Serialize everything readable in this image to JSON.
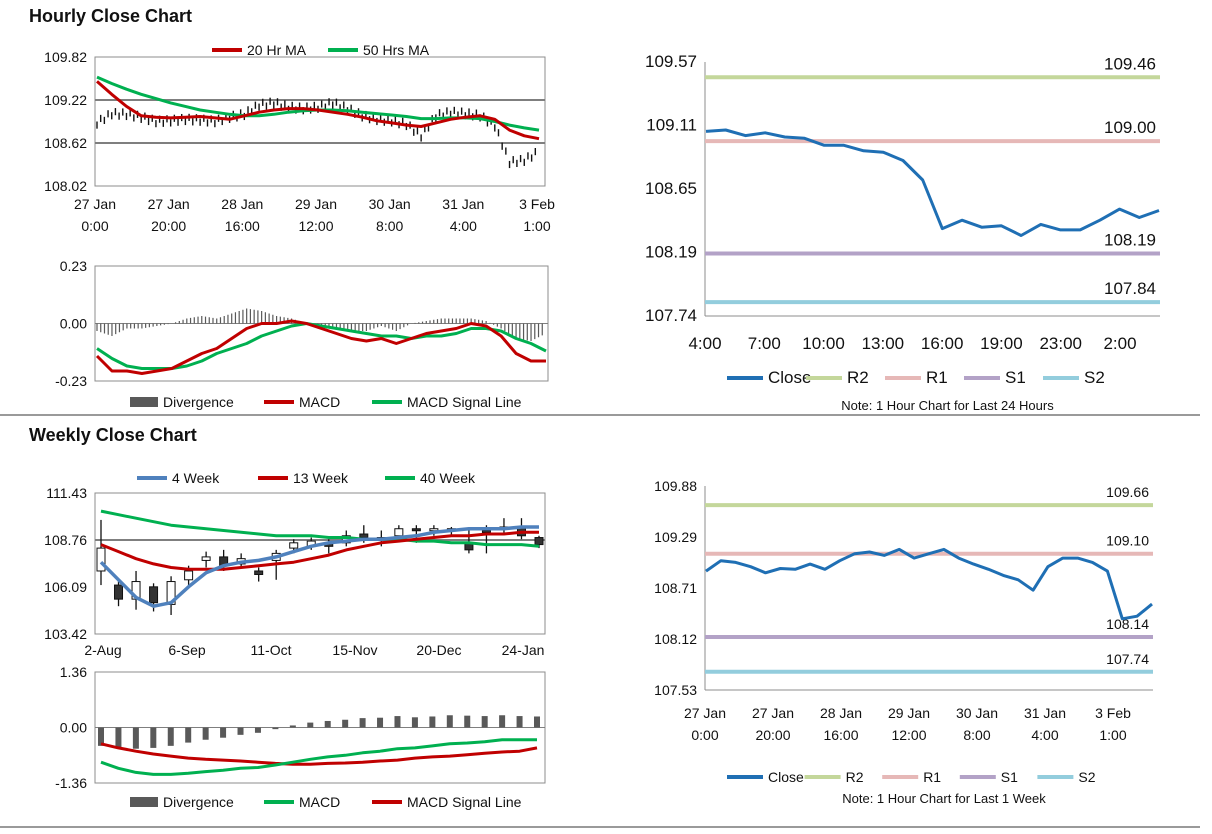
{
  "sections": {
    "hourly_title": "Hourly Close Chart",
    "weekly_title": "Weekly Close Chart"
  },
  "colors": {
    "ma_short": "#c00000",
    "ma_long": "#00b050",
    "ma_4wk": "#4f81bd",
    "close": "#1f6fb4",
    "r2": "#c4d79b",
    "r1": "#e6b8b7",
    "s1": "#b3a2c7",
    "s2": "#93cddd",
    "divergence": "#595959",
    "reference": "#7f7f7f"
  },
  "chart_data": [
    {
      "id": "hourly-price",
      "type": "candlestick",
      "title": "",
      "yticks": [
        "109.82",
        "109.22",
        "108.62",
        "108.02"
      ],
      "ylim": [
        108.02,
        109.82
      ],
      "xlabels": [
        [
          "27 Jan",
          "0:00"
        ],
        [
          "27 Jan",
          "20:00"
        ],
        [
          "28 Jan",
          "16:00"
        ],
        [
          "29 Jan",
          "12:00"
        ],
        [
          "30 Jan",
          "8:00"
        ],
        [
          "31 Jan",
          "4:00"
        ],
        [
          "3 Feb",
          "1:00"
        ]
      ],
      "reference_lines": [
        109.22,
        108.62
      ],
      "legend": [
        "20 Hr MA",
        "50 Hrs MA"
      ],
      "x": [
        0,
        2,
        4,
        6,
        8,
        10,
        12,
        14,
        16,
        18,
        20,
        22,
        24,
        26,
        28,
        30,
        32,
        34,
        36,
        38,
        40,
        42,
        44,
        46,
        48,
        50,
        52,
        54,
        56,
        58,
        60
      ],
      "close": [
        108.9,
        109.03,
        109.02,
        108.98,
        108.92,
        108.93,
        108.95,
        108.94,
        108.92,
        108.98,
        109.02,
        109.15,
        109.18,
        109.12,
        109.1,
        109.12,
        109.18,
        109.1,
        109.0,
        108.95,
        108.93,
        108.88,
        108.72,
        109.0,
        109.05,
        109.03,
        109.0,
        108.86,
        108.35,
        108.38,
        108.5
      ],
      "ma_20hr": [
        109.48,
        109.3,
        109.13,
        109.0,
        108.98,
        108.97,
        108.98,
        108.99,
        108.97,
        108.95,
        109.0,
        109.05,
        109.08,
        109.1,
        109.1,
        109.08,
        109.05,
        109.02,
        108.98,
        108.93,
        108.9,
        108.87,
        108.85,
        108.9,
        108.95,
        108.98,
        109.0,
        108.95,
        108.8,
        108.72,
        108.68
      ],
      "ma_50hr": [
        109.54,
        109.45,
        109.37,
        109.3,
        109.24,
        109.18,
        109.13,
        109.08,
        109.05,
        109.02,
        109.0,
        109.0,
        109.02,
        109.05,
        109.07,
        109.08,
        109.08,
        109.07,
        109.05,
        109.03,
        109.01,
        108.99,
        108.96,
        108.96,
        108.97,
        108.97,
        108.96,
        108.92,
        108.87,
        108.83,
        108.8
      ]
    },
    {
      "id": "hourly-macd",
      "type": "macd",
      "yticks": [
        "0.23",
        "0.00",
        "-0.23"
      ],
      "ylim": [
        -0.23,
        0.23
      ],
      "legend": [
        "Divergence",
        "MACD",
        "MACD Signal Line"
      ],
      "x": [
        0,
        2,
        4,
        6,
        8,
        10,
        12,
        14,
        16,
        18,
        20,
        22,
        24,
        26,
        28,
        30,
        32,
        34,
        36,
        38,
        40,
        42,
        44,
        46,
        48,
        50,
        52,
        54,
        56,
        58,
        60
      ],
      "macd": [
        -0.13,
        -0.19,
        -0.19,
        -0.2,
        -0.19,
        -0.18,
        -0.15,
        -0.12,
        -0.1,
        -0.06,
        -0.02,
        0.0,
        0.0,
        0.01,
        0.0,
        -0.02,
        -0.04,
        -0.06,
        -0.07,
        -0.06,
        -0.08,
        -0.06,
        -0.04,
        -0.03,
        -0.02,
        0.0,
        -0.01,
        -0.05,
        -0.12,
        -0.15,
        -0.15
      ],
      "signal": [
        -0.1,
        -0.14,
        -0.17,
        -0.18,
        -0.18,
        -0.18,
        -0.17,
        -0.15,
        -0.12,
        -0.1,
        -0.08,
        -0.05,
        -0.03,
        -0.01,
        0.0,
        -0.01,
        -0.02,
        -0.03,
        -0.04,
        -0.05,
        -0.05,
        -0.06,
        -0.05,
        -0.05,
        -0.04,
        -0.02,
        -0.02,
        -0.03,
        -0.06,
        -0.08,
        -0.11
      ],
      "divergence": [
        -0.03,
        -0.05,
        -0.02,
        -0.02,
        -0.01,
        0.0,
        0.02,
        0.03,
        0.02,
        0.04,
        0.06,
        0.05,
        0.03,
        0.02,
        0.0,
        -0.01,
        -0.02,
        -0.03,
        -0.03,
        -0.01,
        -0.03,
        0.0,
        0.01,
        0.02,
        0.02,
        0.02,
        0.01,
        -0.02,
        -0.06,
        -0.07,
        -0.04
      ]
    },
    {
      "id": "last24-pivots",
      "type": "line",
      "note": "Note: 1 Hour Chart for Last 24 Hours",
      "yticks": [
        "109.57",
        "109.11",
        "108.65",
        "108.19",
        "107.74"
      ],
      "ylim": [
        107.74,
        109.57
      ],
      "xlabels": [
        "4:00",
        "7:00",
        "10:00",
        "13:00",
        "16:00",
        "19:00",
        "23:00",
        "2:00"
      ],
      "x": [
        0,
        1,
        2,
        3,
        4,
        5,
        6,
        7,
        8,
        9,
        10,
        11,
        12,
        13,
        14,
        15,
        16,
        17,
        18,
        19,
        20,
        21,
        22,
        23
      ],
      "close": [
        109.07,
        109.08,
        109.04,
        109.06,
        109.03,
        109.02,
        108.97,
        108.97,
        108.93,
        108.92,
        108.86,
        108.72,
        108.37,
        108.43,
        108.38,
        108.39,
        108.32,
        108.4,
        108.36,
        108.36,
        108.43,
        108.51,
        108.45,
        108.5
      ],
      "levels": [
        {
          "name": "R2",
          "value": 109.46,
          "label": "109.46"
        },
        {
          "name": "R1",
          "value": 109.0,
          "label": "109.00"
        },
        {
          "name": "S1",
          "value": 108.19,
          "label": "108.19"
        },
        {
          "name": "S2",
          "value": 107.84,
          "label": "107.84"
        }
      ],
      "legend": [
        "Close",
        "R2",
        "R1",
        "S1",
        "S2"
      ]
    },
    {
      "id": "weekly-price",
      "type": "candlestick",
      "yticks": [
        "111.43",
        "108.76",
        "106.09",
        "103.42"
      ],
      "ylim": [
        103.42,
        111.43
      ],
      "xlabels": [
        "2-Aug",
        "6-Sep",
        "11-Oct",
        "15-Nov",
        "20-Dec",
        "24-Jan"
      ],
      "reference_lines": [
        108.76
      ],
      "legend": [
        "4 Week",
        "13 Week",
        "40 Week"
      ],
      "x": [
        0,
        1,
        2,
        3,
        4,
        5,
        6,
        7,
        8,
        9,
        10,
        11,
        12,
        13,
        14,
        15,
        16,
        17,
        18,
        19,
        20,
        21,
        22,
        23,
        24,
        25
      ],
      "candles": [
        [
          107.0,
          108.3,
          106.2,
          109.9
        ],
        [
          106.2,
          105.4,
          105.0,
          106.4
        ],
        [
          105.4,
          106.4,
          104.8,
          107.0
        ],
        [
          106.1,
          105.2,
          104.7,
          106.3
        ],
        [
          105.1,
          106.4,
          104.5,
          106.7
        ],
        [
          106.5,
          107.0,
          106.2,
          107.3
        ],
        [
          107.6,
          107.8,
          107.2,
          108.1
        ],
        [
          107.8,
          107.3,
          107.0,
          108.2
        ],
        [
          107.4,
          107.7,
          107.2,
          108.0
        ],
        [
          107.0,
          106.8,
          106.4,
          107.2
        ],
        [
          107.6,
          108.0,
          106.5,
          108.2
        ],
        [
          108.3,
          108.6,
          108.0,
          108.8
        ],
        [
          108.4,
          108.7,
          108.2,
          108.9
        ],
        [
          108.6,
          108.4,
          108.0,
          108.8
        ],
        [
          108.6,
          109.0,
          108.4,
          109.3
        ],
        [
          109.1,
          108.9,
          108.6,
          109.6
        ],
        [
          108.9,
          108.8,
          108.4,
          109.3
        ],
        [
          109.0,
          109.4,
          108.7,
          109.6
        ],
        [
          109.4,
          109.3,
          108.6,
          109.6
        ],
        [
          109.3,
          109.4,
          109.0,
          109.6
        ],
        [
          109.4,
          109.3,
          109.0,
          109.5
        ],
        [
          108.6,
          108.2,
          108.0,
          109.3
        ],
        [
          109.3,
          109.2,
          108.0,
          109.6
        ],
        [
          109.4,
          109.5,
          109.1,
          110.0
        ],
        [
          109.5,
          109.0,
          108.8,
          110.0
        ],
        [
          108.9,
          108.5,
          108.3,
          109.0
        ]
      ],
      "ma_4wk": [
        107.5,
        106.5,
        105.5,
        105.0,
        105.2,
        106.1,
        106.9,
        107.3,
        107.5,
        107.6,
        107.8,
        108.1,
        108.4,
        108.6,
        108.7,
        108.8,
        108.8,
        108.9,
        109.0,
        109.2,
        109.3,
        109.4,
        109.4,
        109.4,
        109.5,
        109.5
      ],
      "ma_13wk": [
        108.5,
        108.1,
        107.7,
        107.4,
        107.2,
        107.1,
        107.1,
        107.1,
        107.2,
        107.3,
        107.4,
        107.5,
        107.7,
        107.9,
        108.2,
        108.4,
        108.6,
        108.7,
        108.8,
        108.9,
        109.0,
        109.0,
        109.1,
        109.1,
        109.2,
        109.2
      ],
      "ma_40wk": [
        110.4,
        110.2,
        110.0,
        109.8,
        109.6,
        109.5,
        109.4,
        109.3,
        109.2,
        109.1,
        109.0,
        109.0,
        109.0,
        108.9,
        108.9,
        108.8,
        108.8,
        108.8,
        108.7,
        108.7,
        108.6,
        108.6,
        108.5,
        108.5,
        108.5,
        108.4
      ]
    },
    {
      "id": "weekly-macd",
      "type": "macd",
      "yticks": [
        "1.36",
        "0.00",
        "-1.36"
      ],
      "ylim": [
        -1.36,
        1.36
      ],
      "legend": [
        "Divergence",
        "MACD",
        "MACD Signal Line"
      ],
      "x": [
        0,
        1,
        2,
        3,
        4,
        5,
        6,
        7,
        8,
        9,
        10,
        11,
        12,
        13,
        14,
        15,
        16,
        17,
        18,
        19,
        20,
        21,
        22,
        23,
        24,
        25
      ],
      "macd": [
        -0.85,
        -1.0,
        -1.1,
        -1.15,
        -1.15,
        -1.12,
        -1.08,
        -1.05,
        -1.0,
        -0.98,
        -0.92,
        -0.85,
        -0.78,
        -0.72,
        -0.68,
        -0.62,
        -0.58,
        -0.52,
        -0.5,
        -0.45,
        -0.4,
        -0.38,
        -0.35,
        -0.3,
        -0.3,
        -0.3
      ],
      "signal": [
        -0.4,
        -0.5,
        -0.58,
        -0.65,
        -0.7,
        -0.75,
        -0.78,
        -0.8,
        -0.82,
        -0.85,
        -0.88,
        -0.9,
        -0.9,
        -0.88,
        -0.87,
        -0.85,
        -0.82,
        -0.8,
        -0.75,
        -0.72,
        -0.7,
        -0.67,
        -0.63,
        -0.6,
        -0.58,
        -0.5
      ],
      "divergence": [
        -0.45,
        -0.5,
        -0.52,
        -0.5,
        -0.45,
        -0.37,
        -0.3,
        -0.25,
        -0.18,
        -0.13,
        -0.04,
        0.05,
        0.12,
        0.16,
        0.19,
        0.23,
        0.24,
        0.28,
        0.25,
        0.27,
        0.3,
        0.29,
        0.28,
        0.3,
        0.28,
        0.27
      ]
    },
    {
      "id": "lastweek-pivots",
      "type": "line",
      "note": "Note: 1 Hour Chart for Last 1 Week",
      "yticks": [
        "109.88",
        "109.29",
        "108.71",
        "108.12",
        "107.53"
      ],
      "ylim": [
        107.53,
        109.88
      ],
      "xlabels": [
        [
          "27 Jan",
          "0:00"
        ],
        [
          "27 Jan",
          "20:00"
        ],
        [
          "28 Jan",
          "16:00"
        ],
        [
          "29 Jan",
          "12:00"
        ],
        [
          "30 Jan",
          "8:00"
        ],
        [
          "31 Jan",
          "4:00"
        ],
        [
          "3 Feb",
          "1:00"
        ]
      ],
      "x": [
        0,
        2,
        4,
        6,
        8,
        10,
        12,
        14,
        16,
        18,
        20,
        22,
        24,
        26,
        28,
        30,
        32,
        34,
        36,
        38,
        40,
        42,
        44,
        46,
        48,
        50,
        52,
        54,
        56,
        58,
        60
      ],
      "close": [
        108.9,
        109.02,
        109.0,
        108.95,
        108.88,
        108.93,
        108.92,
        108.98,
        108.92,
        109.02,
        109.1,
        109.12,
        109.08,
        109.15,
        109.05,
        109.1,
        109.15,
        109.05,
        108.98,
        108.92,
        108.85,
        108.8,
        108.68,
        108.95,
        109.05,
        109.05,
        109.0,
        108.9,
        108.35,
        108.38,
        108.52
      ],
      "levels": [
        {
          "name": "R2",
          "value": 109.66,
          "label": "109.66"
        },
        {
          "name": "R1",
          "value": 109.1,
          "label": "109.10"
        },
        {
          "name": "S1",
          "value": 108.14,
          "label": "108.14"
        },
        {
          "name": "S2",
          "value": 107.74,
          "label": "107.74"
        }
      ],
      "legend": [
        "Close",
        "R2",
        "R1",
        "S1",
        "S2"
      ]
    }
  ]
}
